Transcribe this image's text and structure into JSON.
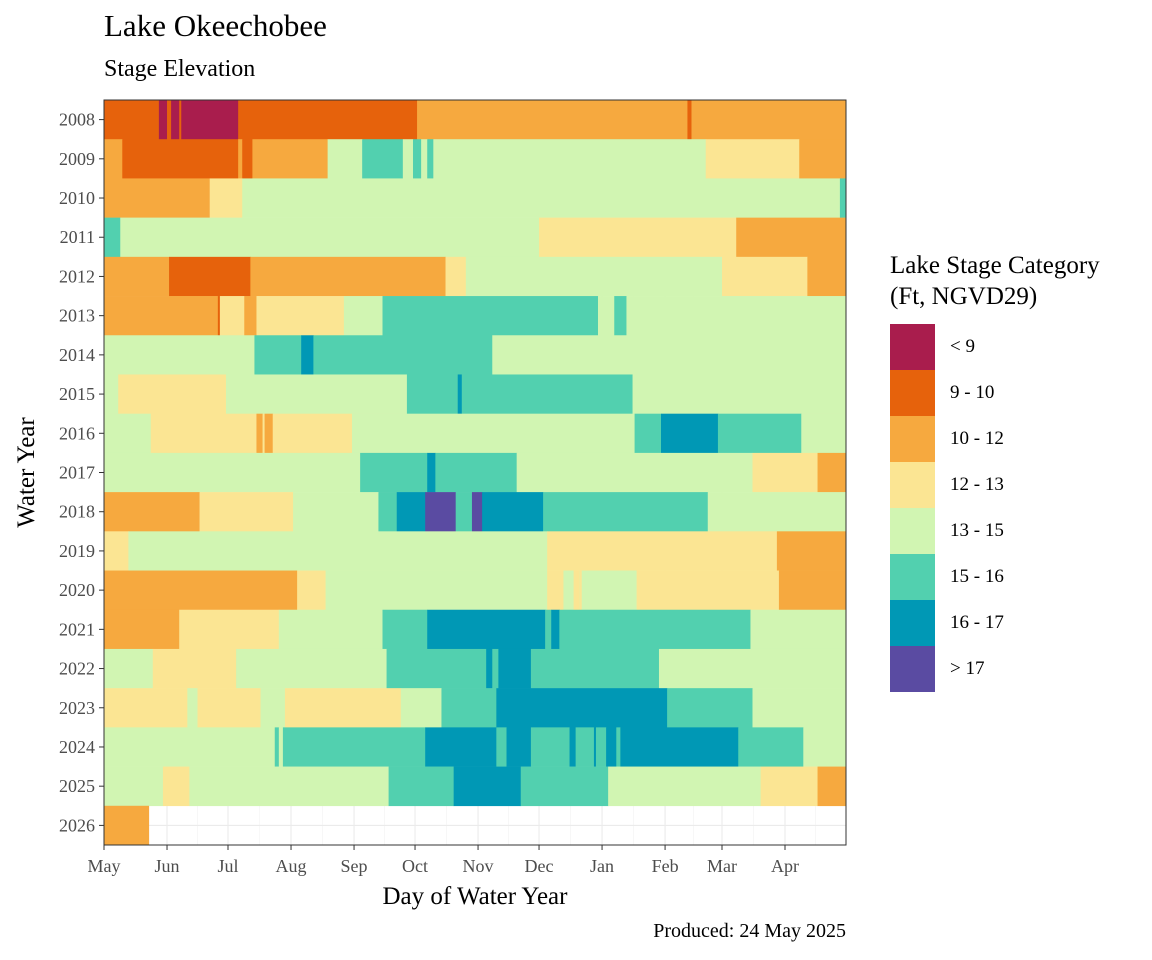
{
  "title": "Lake Okeechobee",
  "subtitle": "Stage Elevation",
  "caption": "Produced: 24 May 2025",
  "chart_data": {
    "type": "heatmap",
    "xlabel": "Day of Water Year",
    "ylabel": "Water Year",
    "x_range": [
      0,
      365
    ],
    "x_ticks": [
      {
        "label": "May",
        "day": 0
      },
      {
        "label": "Jun",
        "day": 31
      },
      {
        "label": "Jul",
        "day": 61
      },
      {
        "label": "Aug",
        "day": 92
      },
      {
        "label": "Sep",
        "day": 123
      },
      {
        "label": "Oct",
        "day": 153
      },
      {
        "label": "Nov",
        "day": 184
      },
      {
        "label": "Dec",
        "day": 214
      },
      {
        "label": "Jan",
        "day": 245
      },
      {
        "label": "Feb",
        "day": 276
      },
      {
        "label": "Mar",
        "day": 304
      },
      {
        "label": "Apr",
        "day": 335
      }
    ],
    "legend_title": "Lake Stage Category\n(Ft, NGVD29)",
    "legend_position": "right",
    "grid": true,
    "categories": [
      {
        "label": "< 9",
        "color": "#A91D4D"
      },
      {
        "label": "9 - 10",
        "color": "#E6620C"
      },
      {
        "label": "10 - 12",
        "color": "#F6A93F"
      },
      {
        "label": "12 - 13",
        "color": "#FBE593"
      },
      {
        "label": "13 - 15",
        "color": "#D1F5B2"
      },
      {
        "label": "15 - 16",
        "color": "#52D0AF"
      },
      {
        "label": "16 - 17",
        "color": "#0098B5"
      },
      {
        "label": "> 17",
        "color": "#5A4BA2"
      }
    ],
    "years": [
      {
        "year": "2008",
        "segments": [
          [
            0,
            27,
            "9 - 10"
          ],
          [
            27,
            31,
            "< 9"
          ],
          [
            31,
            33,
            "9 - 10"
          ],
          [
            33,
            37,
            "< 9"
          ],
          [
            37,
            38,
            "9 - 10"
          ],
          [
            38,
            66,
            "< 9"
          ],
          [
            66,
            154,
            "9 - 10"
          ],
          [
            154,
            287,
            "10 - 12"
          ],
          [
            287,
            289,
            "9 - 10"
          ],
          [
            289,
            365,
            "10 - 12"
          ]
        ]
      },
      {
        "year": "2009",
        "segments": [
          [
            0,
            9,
            "10 - 12"
          ],
          [
            9,
            66,
            "9 - 10"
          ],
          [
            66,
            68,
            "10 - 12"
          ],
          [
            68,
            73,
            "9 - 10"
          ],
          [
            73,
            110,
            "10 - 12"
          ],
          [
            110,
            127,
            "13 - 15"
          ],
          [
            127,
            147,
            "15 - 16"
          ],
          [
            147,
            152,
            "13 - 15"
          ],
          [
            152,
            156,
            "15 - 16"
          ],
          [
            156,
            159,
            "13 - 15"
          ],
          [
            159,
            162,
            "15 - 16"
          ],
          [
            162,
            296,
            "13 - 15"
          ],
          [
            296,
            342,
            "12 - 13"
          ],
          [
            342,
            365,
            "10 - 12"
          ]
        ]
      },
      {
        "year": "2010",
        "segments": [
          [
            0,
            52,
            "10 - 12"
          ],
          [
            52,
            68,
            "12 - 13"
          ],
          [
            68,
            362,
            "13 - 15"
          ],
          [
            362,
            365,
            "15 - 16"
          ]
        ]
      },
      {
        "year": "2011",
        "segments": [
          [
            0,
            8,
            "15 - 16"
          ],
          [
            8,
            214,
            "13 - 15"
          ],
          [
            214,
            311,
            "12 - 13"
          ],
          [
            311,
            365,
            "10 - 12"
          ]
        ]
      },
      {
        "year": "2012",
        "segments": [
          [
            0,
            32,
            "10 - 12"
          ],
          [
            32,
            72,
            "9 - 10"
          ],
          [
            72,
            168,
            "10 - 12"
          ],
          [
            168,
            178,
            "12 - 13"
          ],
          [
            178,
            304,
            "13 - 15"
          ],
          [
            304,
            346,
            "12 - 13"
          ],
          [
            346,
            365,
            "10 - 12"
          ]
        ]
      },
      {
        "year": "2013",
        "segments": [
          [
            0,
            56,
            "10 - 12"
          ],
          [
            56,
            57,
            "9 - 10"
          ],
          [
            57,
            69,
            "12 - 13"
          ],
          [
            69,
            75,
            "10 - 12"
          ],
          [
            75,
            118,
            "12 - 13"
          ],
          [
            118,
            137,
            "13 - 15"
          ],
          [
            137,
            243,
            "15 - 16"
          ],
          [
            243,
            251,
            "13 - 15"
          ],
          [
            251,
            257,
            "15 - 16"
          ],
          [
            257,
            365,
            "13 - 15"
          ]
        ]
      },
      {
        "year": "2014",
        "segments": [
          [
            0,
            74,
            "13 - 15"
          ],
          [
            74,
            97,
            "15 - 16"
          ],
          [
            97,
            103,
            "16 - 17"
          ],
          [
            103,
            191,
            "15 - 16"
          ],
          [
            191,
            365,
            "13 - 15"
          ]
        ]
      },
      {
        "year": "2015",
        "segments": [
          [
            0,
            7,
            "13 - 15"
          ],
          [
            7,
            60,
            "12 - 13"
          ],
          [
            60,
            149,
            "13 - 15"
          ],
          [
            149,
            174,
            "15 - 16"
          ],
          [
            174,
            176,
            "16 - 17"
          ],
          [
            176,
            260,
            "15 - 16"
          ],
          [
            260,
            365,
            "13 - 15"
          ]
        ]
      },
      {
        "year": "2016",
        "segments": [
          [
            0,
            23,
            "13 - 15"
          ],
          [
            23,
            75,
            "12 - 13"
          ],
          [
            75,
            78,
            "10 - 12"
          ],
          [
            78,
            79,
            "12 - 13"
          ],
          [
            79,
            83,
            "10 - 12"
          ],
          [
            83,
            122,
            "12 - 13"
          ],
          [
            122,
            261,
            "13 - 15"
          ],
          [
            261,
            274,
            "15 - 16"
          ],
          [
            274,
            302,
            "16 - 17"
          ],
          [
            302,
            343,
            "15 - 16"
          ],
          [
            343,
            365,
            "13 - 15"
          ]
        ]
      },
      {
        "year": "2017",
        "segments": [
          [
            0,
            126,
            "13 - 15"
          ],
          [
            126,
            159,
            "15 - 16"
          ],
          [
            159,
            163,
            "16 - 17"
          ],
          [
            163,
            203,
            "15 - 16"
          ],
          [
            203,
            319,
            "13 - 15"
          ],
          [
            319,
            351,
            "12 - 13"
          ],
          [
            351,
            365,
            "10 - 12"
          ]
        ]
      },
      {
        "year": "2018",
        "segments": [
          [
            0,
            47,
            "10 - 12"
          ],
          [
            47,
            93,
            "12 - 13"
          ],
          [
            93,
            135,
            "13 - 15"
          ],
          [
            135,
            144,
            "15 - 16"
          ],
          [
            144,
            158,
            "16 - 17"
          ],
          [
            158,
            173,
            "> 17"
          ],
          [
            173,
            181,
            "15 - 16"
          ],
          [
            181,
            186,
            "> 17"
          ],
          [
            186,
            216,
            "16 - 17"
          ],
          [
            216,
            297,
            "15 - 16"
          ],
          [
            297,
            365,
            "13 - 15"
          ]
        ]
      },
      {
        "year": "2019",
        "segments": [
          [
            0,
            12,
            "12 - 13"
          ],
          [
            12,
            218,
            "13 - 15"
          ],
          [
            218,
            331,
            "12 - 13"
          ],
          [
            331,
            365,
            "10 - 12"
          ]
        ]
      },
      {
        "year": "2020",
        "segments": [
          [
            0,
            95,
            "10 - 12"
          ],
          [
            95,
            109,
            "12 - 13"
          ],
          [
            109,
            218,
            "13 - 15"
          ],
          [
            218,
            226,
            "12 - 13"
          ],
          [
            226,
            231,
            "13 - 15"
          ],
          [
            231,
            234,
            "12 - 13"
          ],
          [
            234,
            235,
            "13 - 15"
          ],
          [
            235,
            234,
            "13 - 15"
          ],
          [
            234,
            234,
            "13 - 15"
          ],
          [
            234,
            235,
            "12 - 13"
          ],
          [
            235,
            262,
            "13 - 15"
          ],
          [
            262,
            332,
            "12 - 13"
          ],
          [
            332,
            365,
            "10 - 12"
          ]
        ]
      },
      {
        "year": "2021",
        "segments": [
          [
            0,
            37,
            "10 - 12"
          ],
          [
            37,
            86,
            "12 - 13"
          ],
          [
            86,
            137,
            "13 - 15"
          ],
          [
            137,
            159,
            "15 - 16"
          ],
          [
            159,
            217,
            "16 - 17"
          ],
          [
            217,
            220,
            "15 - 16"
          ],
          [
            220,
            224,
            "16 - 17"
          ],
          [
            224,
            318,
            "15 - 16"
          ],
          [
            318,
            365,
            "13 - 15"
          ]
        ]
      },
      {
        "year": "2022",
        "segments": [
          [
            0,
            24,
            "13 - 15"
          ],
          [
            24,
            65,
            "12 - 13"
          ],
          [
            65,
            139,
            "13 - 15"
          ],
          [
            139,
            188,
            "15 - 16"
          ],
          [
            188,
            191,
            "16 - 17"
          ],
          [
            191,
            194,
            "15 - 16"
          ],
          [
            194,
            210,
            "16 - 17"
          ],
          [
            210,
            273,
            "15 - 16"
          ],
          [
            273,
            365,
            "13 - 15"
          ]
        ]
      },
      {
        "year": "2023",
        "segments": [
          [
            0,
            41,
            "12 - 13"
          ],
          [
            41,
            46,
            "13 - 15"
          ],
          [
            46,
            77,
            "12 - 13"
          ],
          [
            77,
            89,
            "13 - 15"
          ],
          [
            89,
            146,
            "12 - 13"
          ],
          [
            146,
            166,
            "13 - 15"
          ],
          [
            166,
            193,
            "15 - 16"
          ],
          [
            193,
            277,
            "16 - 17"
          ],
          [
            277,
            319,
            "15 - 16"
          ],
          [
            319,
            365,
            "13 - 15"
          ]
        ]
      },
      {
        "year": "2024",
        "segments": [
          [
            0,
            84,
            "13 - 15"
          ],
          [
            84,
            86,
            "15 - 16"
          ],
          [
            86,
            88,
            "13 - 15"
          ],
          [
            88,
            158,
            "15 - 16"
          ],
          [
            158,
            193,
            "16 - 17"
          ],
          [
            193,
            198,
            "15 - 16"
          ],
          [
            198,
            210,
            "16 - 17"
          ],
          [
            210,
            229,
            "15 - 16"
          ],
          [
            229,
            232,
            "16 - 17"
          ],
          [
            232,
            241,
            "15 - 16"
          ],
          [
            241,
            242,
            "16 - 17"
          ],
          [
            242,
            247,
            "15 - 16"
          ],
          [
            247,
            252,
            "16 - 17"
          ],
          [
            252,
            254,
            "15 - 16"
          ],
          [
            254,
            312,
            "16 - 17"
          ],
          [
            312,
            344,
            "15 - 16"
          ],
          [
            344,
            365,
            "13 - 15"
          ]
        ]
      },
      {
        "year": "2025",
        "segments": [
          [
            0,
            29,
            "13 - 15"
          ],
          [
            29,
            42,
            "12 - 13"
          ],
          [
            42,
            140,
            "13 - 15"
          ],
          [
            140,
            172,
            "15 - 16"
          ],
          [
            172,
            205,
            "16 - 17"
          ],
          [
            205,
            248,
            "15 - 16"
          ],
          [
            248,
            323,
            "13 - 15"
          ],
          [
            323,
            351,
            "12 - 13"
          ],
          [
            351,
            365,
            "10 - 12"
          ]
        ]
      },
      {
        "year": "2026",
        "segments": [
          [
            0,
            22,
            "10 - 12"
          ]
        ]
      }
    ]
  }
}
